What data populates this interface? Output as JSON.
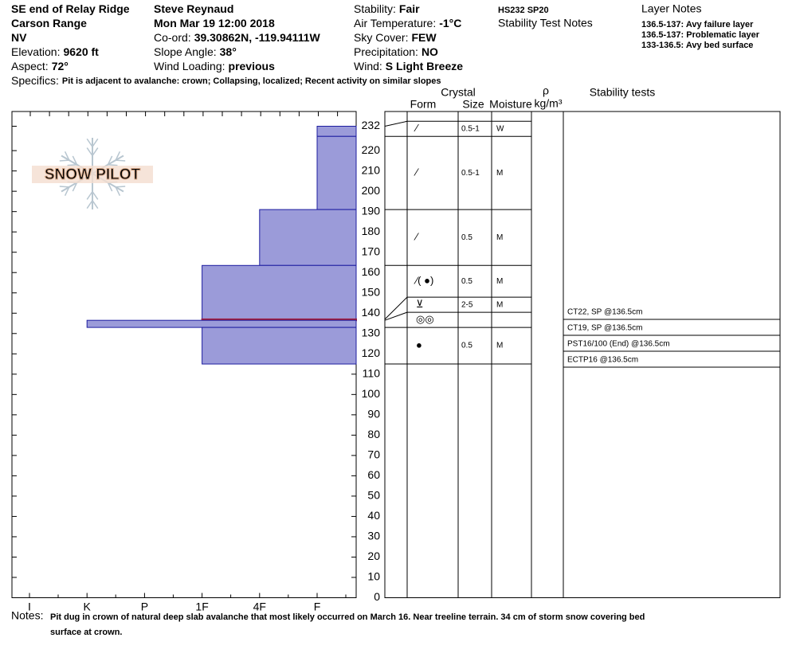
{
  "header": {
    "columns": [
      [
        {
          "value": "SE end of Relay Ridge"
        },
        {
          "value": "Carson Range"
        },
        {
          "value": "NV"
        },
        {
          "label": "Elevation:",
          "value": "9620 ft"
        },
        {
          "label": "Aspect:",
          "value": "72°"
        }
      ],
      [
        {
          "value": "Steve Reynaud"
        },
        {
          "value": "Mon Mar 19 12:00 2018"
        },
        {
          "label": "Co-ord:",
          "value": "39.30862N, -119.94111W"
        },
        {
          "label": "Slope Angle:",
          "value": "38°"
        },
        {
          "label": "Wind Loading:",
          "value": "previous"
        }
      ],
      [
        {
          "label": "Stability:",
          "value": "Fair"
        },
        {
          "label": "Air Temperature:",
          "value": "-1°C"
        },
        {
          "label": "Sky Cover:",
          "value": "FEW"
        },
        {
          "label": "Precipitation:",
          "value": "NO"
        },
        {
          "label": "Wind:",
          "value": "S Light Breeze"
        }
      ]
    ],
    "hs_sp": "HS232  SP20",
    "stability_test_notes": "Stability Test Notes",
    "layer_notes": {
      "title": "Layer Notes",
      "items": [
        "136.5-137: Avy failure layer",
        "136.5-137: Problematic layer",
        "133-136.5: Avy bed surface"
      ]
    },
    "specifics": {
      "label": "Specifics:",
      "value": "Pit is adjacent to avalanche: crown; Collapsing, localized; Recent activity on similar slopes"
    }
  },
  "logo": "SNOW PILOT",
  "chart_data": {
    "type": "snow-profile",
    "hardness_categories": [
      "I",
      "K",
      "P",
      "1F",
      "4F",
      "F"
    ],
    "ylim": [
      0,
      232
    ],
    "yticks": [
      0,
      10,
      20,
      30,
      40,
      50,
      60,
      70,
      80,
      90,
      100,
      110,
      120,
      130,
      140,
      150,
      160,
      170,
      180,
      190,
      200,
      210,
      220,
      232
    ],
    "bar_color": "#9b9bd9",
    "edge_color": "#1c1ca0",
    "critical_color": "#a01c3c",
    "layers": [
      {
        "top": 232,
        "bottom": 227,
        "hardness": "F",
        "form": "⁄",
        "size": "0.5-1",
        "moisture": "W"
      },
      {
        "top": 227,
        "bottom": 191,
        "hardness": "F",
        "form": "⁄",
        "size": "0.5-1",
        "moisture": "M"
      },
      {
        "top": 191,
        "bottom": 163.5,
        "hardness": "4F",
        "form": "⁄",
        "size": "0.5",
        "moisture": "M"
      },
      {
        "top": 163.5,
        "bottom": 137,
        "hardness": "1F",
        "form": "⁄( ●)",
        "size": "0.5",
        "moisture": "M"
      },
      {
        "top": 137,
        "bottom": 136.5,
        "hardness": "1F",
        "form": "⊻",
        "size": "2-5",
        "moisture": "M",
        "critical": true
      },
      {
        "top": 136.5,
        "bottom": 133,
        "hardness": "K",
        "form": "◎◎"
      },
      {
        "top": 133,
        "bottom": 115,
        "hardness": "1F",
        "form": "●",
        "size": "0.5",
        "moisture": "M"
      }
    ]
  },
  "table": {
    "crystal": "Crystal",
    "form": "Form",
    "size": "Size",
    "moisture": "Moisture",
    "rho": "ρ",
    "density_unit": "kg/m³",
    "stability_tests": "Stability tests"
  },
  "tests": [
    "CT22, SP @136.5cm",
    "CT19, SP @136.5cm",
    "PST16/100 (End) @136.5cm",
    "ECTP16 @136.5cm"
  ],
  "notes": {
    "label": "Notes:",
    "lines": [
      "Pit dug in crown of natural deep slab avalanche that most likely occurred on March 16. Near treeline terrain. 34 cm of storm snow covering bed",
      "surface at crown."
    ]
  }
}
